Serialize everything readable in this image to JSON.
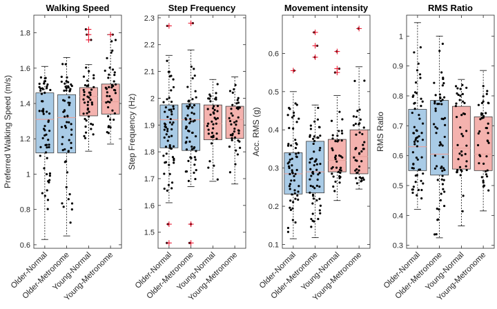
{
  "colors": {
    "older_fill": "#a9cbe6",
    "young_fill": "#f4b2ae",
    "median_older": "#e8a19b",
    "median_young": "#e8a19b",
    "outlier": "#e8001c",
    "dot": "#000000",
    "axis": "#262626"
  },
  "chart_data": [
    {
      "type": "box",
      "title": "Walking Speed",
      "ylabel": "Preferred Walking Speed (m/s)",
      "ylim": [
        0.58,
        1.9
      ],
      "yticks": [
        0.6,
        0.8,
        1,
        1.2,
        1.4,
        1.6,
        1.8
      ],
      "ytick_labels": [
        "0.6",
        "0.8",
        "1",
        "1.2",
        "1.4",
        "1.6",
        "1.8"
      ],
      "categories": [
        "Older-Normal",
        "Older-Metronome",
        "Young-Normal",
        "Young-Metronome"
      ],
      "boxes": [
        {
          "q1": 1.12,
          "median": 1.31,
          "q3": 1.46,
          "whisker_low": 0.63,
          "whisker_high": 1.61,
          "outliers": [],
          "n": 60
        },
        {
          "q1": 1.12,
          "median": 1.32,
          "q3": 1.45,
          "whisker_low": 0.65,
          "whisker_high": 1.66,
          "outliers": [],
          "n": 60
        },
        {
          "q1": 1.33,
          "median": 1.44,
          "q3": 1.49,
          "whisker_low": 1.13,
          "whisker_high": 1.62,
          "outliers": [
            1.76,
            1.79,
            1.82
          ],
          "n": 42
        },
        {
          "q1": 1.34,
          "median": 1.41,
          "q3": 1.51,
          "whisker_low": 1.17,
          "whisker_high": 1.79,
          "outliers": [
            1.79
          ],
          "n": 42
        }
      ]
    },
    {
      "type": "box",
      "title": "Step Frequency",
      "ylabel": "Step Frequency (Hz)",
      "ylim": [
        1.44,
        2.31
      ],
      "yticks": [
        1.5,
        1.6,
        1.7,
        1.8,
        1.9,
        2.0,
        2.1,
        2.2,
        2.3
      ],
      "ytick_labels": [
        "1.5",
        "1.6",
        "1.7",
        "1.8",
        "1.9",
        "2",
        "2.1",
        "2.2",
        "2.3"
      ],
      "categories": [
        "Older-Normal",
        "Older-Metronome",
        "Young-Normal",
        "Young-Metronome"
      ],
      "boxes": [
        {
          "q1": 1.815,
          "median": 1.92,
          "q3": 1.975,
          "whisker_low": 1.61,
          "whisker_high": 2.16,
          "outliers": [
            2.27,
            1.53,
            1.46
          ],
          "n": 60
        },
        {
          "q1": 1.805,
          "median": 1.92,
          "q3": 1.98,
          "whisker_low": 1.67,
          "whisker_high": 2.18,
          "outliers": [
            2.28,
            1.53,
            1.46
          ],
          "n": 60
        },
        {
          "q1": 1.845,
          "median": 1.905,
          "q3": 1.975,
          "whisker_low": 1.69,
          "whisker_high": 2.07,
          "outliers": [],
          "n": 42
        },
        {
          "q1": 1.85,
          "median": 1.92,
          "q3": 1.97,
          "whisker_low": 1.68,
          "whisker_high": 2.08,
          "outliers": [],
          "n": 42
        }
      ]
    },
    {
      "type": "box",
      "title": "Movement intensity",
      "ylabel": "Acc. RMS (g)",
      "ylim": [
        0.09,
        0.7
      ],
      "yticks": [
        0.1,
        0.2,
        0.3,
        0.4,
        0.5,
        0.6
      ],
      "ytick_labels": [
        "0.1",
        "0.2",
        "0.3",
        "0.4",
        "0.5",
        "0.6"
      ],
      "categories": [
        "Older-Normal",
        "Older-Metronome",
        "Young-Normal",
        "Young-Metronome"
      ],
      "boxes": [
        {
          "q1": 0.232,
          "median": 0.285,
          "q3": 0.34,
          "whisker_low": 0.115,
          "whisker_high": 0.5,
          "outliers": [
            0.555
          ],
          "n": 60
        },
        {
          "q1": 0.235,
          "median": 0.29,
          "q3": 0.37,
          "whisker_low": 0.118,
          "whisker_high": 0.465,
          "outliers": [
            0.655,
            0.62,
            0.59
          ],
          "n": 60
        },
        {
          "q1": 0.29,
          "median": 0.32,
          "q3": 0.375,
          "whisker_low": 0.215,
          "whisker_high": 0.49,
          "outliers": [
            0.605,
            0.56,
            0.55
          ],
          "n": 42
        },
        {
          "q1": 0.285,
          "median": 0.33,
          "q3": 0.4,
          "whisker_low": 0.245,
          "whisker_high": 0.565,
          "outliers": [
            0.665
          ],
          "n": 42
        }
      ]
    },
    {
      "type": "box",
      "title": "RMS Ratio",
      "ylabel": "RMS Ratio",
      "ylim": [
        0.29,
        1.07
      ],
      "yticks": [
        0.3,
        0.4,
        0.5,
        0.6,
        0.7,
        0.8,
        0.9,
        1.0
      ],
      "ytick_labels": [
        "0.3",
        "0.4",
        "0.5",
        "0.6",
        "0.7",
        "0.8",
        "0.9",
        "1"
      ],
      "categories": [
        "Older-Normal",
        "Older-Metronome",
        "Young-Normal",
        "Young-Metronome"
      ],
      "boxes": [
        {
          "q1": 0.55,
          "median": 0.63,
          "q3": 0.755,
          "whisker_low": 0.42,
          "whisker_high": 1.045,
          "outliers": [],
          "n": 60
        },
        {
          "q1": 0.535,
          "median": 0.605,
          "q3": 0.785,
          "whisker_low": 0.325,
          "whisker_high": 1.0,
          "outliers": [],
          "n": 60
        },
        {
          "q1": 0.555,
          "median": 0.625,
          "q3": 0.765,
          "whisker_low": 0.365,
          "whisker_high": 0.855,
          "outliers": [],
          "n": 42
        },
        {
          "q1": 0.55,
          "median": 0.605,
          "q3": 0.73,
          "whisker_low": 0.415,
          "whisker_high": 0.885,
          "outliers": [],
          "n": 42
        }
      ]
    }
  ]
}
